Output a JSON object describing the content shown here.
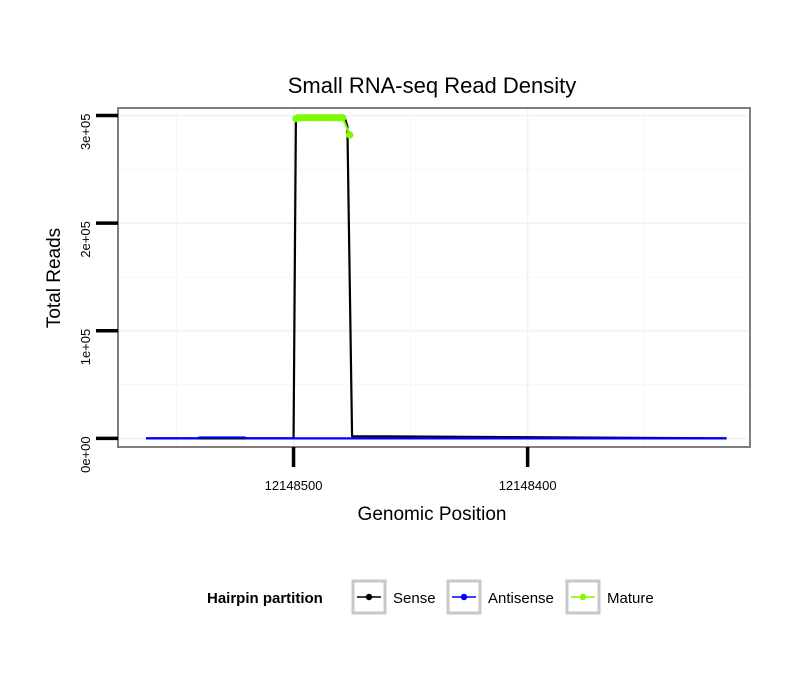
{
  "chart_data": {
    "type": "line",
    "title": "Small RNA-seq Read Density",
    "xlabel": "Genomic Position",
    "ylabel": "Total Reads",
    "x_reversed": true,
    "xlim": [
      12148575,
      12148305
    ],
    "ylim": [
      -8000,
      307000
    ],
    "x_ticks": [
      12148500,
      12148400
    ],
    "x_tick_labels": [
      "12148500",
      "12148400"
    ],
    "y_ticks": [
      0,
      100000,
      200000,
      300000
    ],
    "y_tick_labels": [
      "0e+00",
      "1e+05",
      "2e+05",
      "3e+05"
    ],
    "grid": true,
    "series": [
      {
        "name": "Sense",
        "color": "#000000",
        "x": [
          12148563,
          12148500,
          12148499,
          12148478,
          12148477,
          12148475,
          12148315
        ],
        "y": [
          0,
          0,
          297000,
          297000,
          290000,
          2000,
          0
        ]
      },
      {
        "name": "Antisense",
        "color": "#0000ff",
        "x": [
          12148563,
          12148541,
          12148540,
          12148521,
          12148520,
          12148315
        ],
        "y": [
          0,
          0,
          900,
          900,
          0,
          0
        ]
      },
      {
        "name": "Mature",
        "color": "#7cfc00",
        "x": [
          12148499,
          12148498,
          12148497,
          12148496,
          12148495,
          12148494,
          12148493,
          12148492,
          12148491,
          12148490,
          12148489,
          12148488,
          12148487,
          12148486,
          12148485,
          12148484,
          12148483,
          12148482,
          12148481,
          12148480,
          12148479,
          12148476
        ],
        "y": [
          297000,
          298000,
          298000,
          298000,
          298000,
          298000,
          298000,
          298000,
          298000,
          298000,
          298000,
          298000,
          298000,
          298000,
          298000,
          298000,
          298000,
          298000,
          298000,
          298000,
          298000,
          282000
        ]
      }
    ],
    "legend": {
      "title": "Hairpin partition",
      "position": "bottom",
      "entries": [
        "Sense",
        "Antisense",
        "Mature"
      ]
    }
  }
}
